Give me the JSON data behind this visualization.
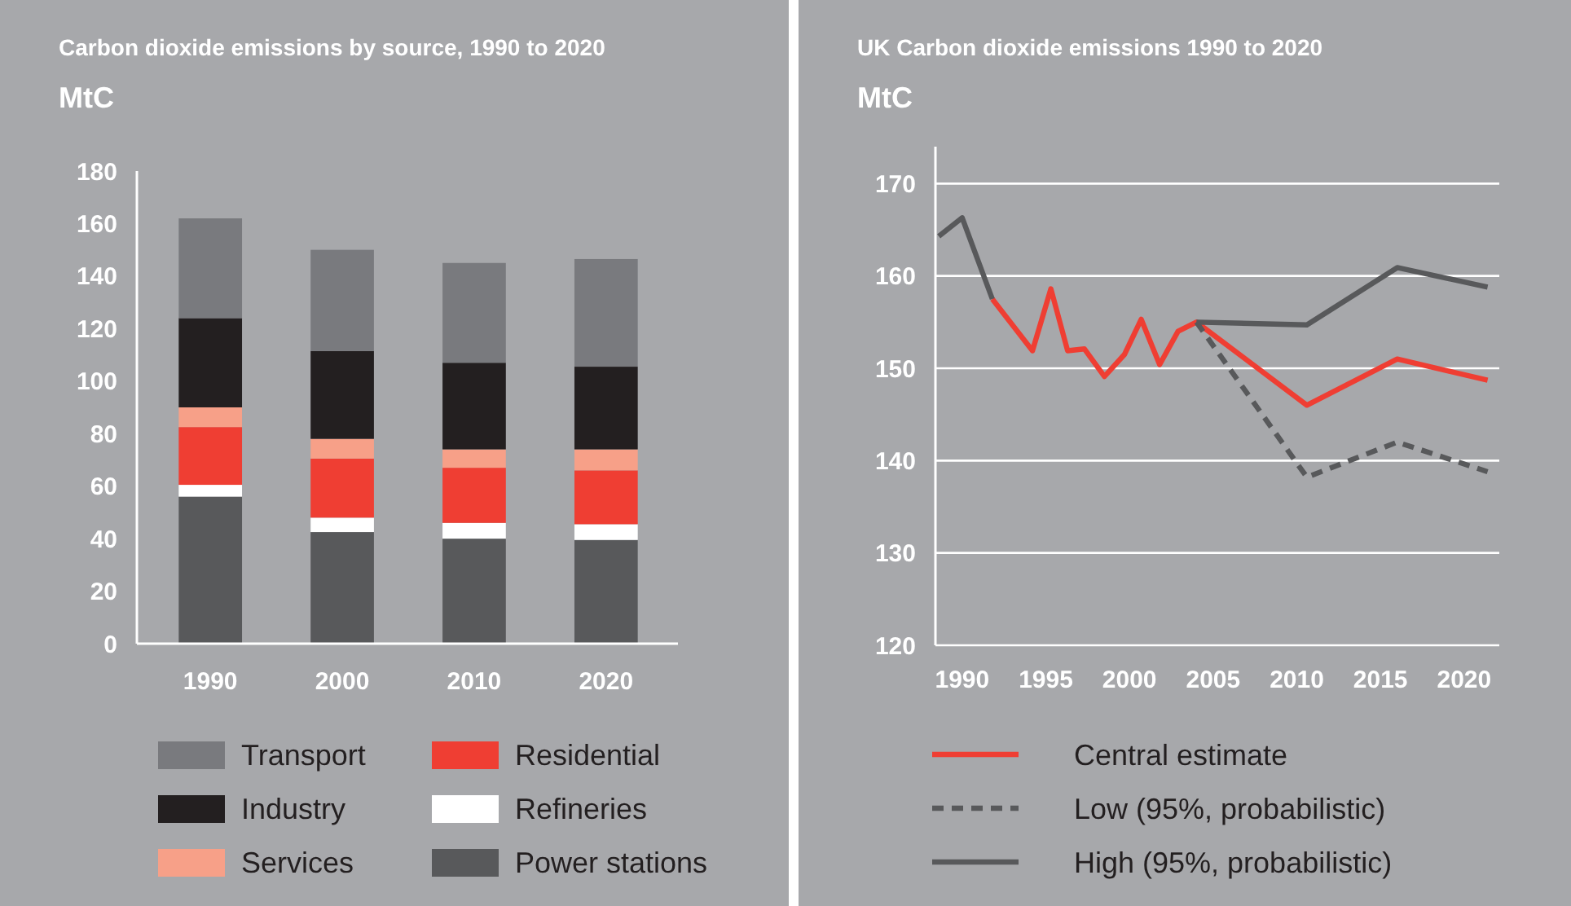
{
  "chart_data": [
    {
      "type": "bar",
      "title": "Carbon dioxide emissions by source, 1990 to 2020",
      "ylabel": "MtC",
      "stacked": true,
      "categories": [
        "1990",
        "2000",
        "2010",
        "2020"
      ],
      "ylim": [
        0,
        180
      ],
      "yticks": [
        0,
        20,
        40,
        60,
        80,
        100,
        120,
        140,
        160,
        180
      ],
      "grid": false,
      "legend": "bottom",
      "series": [
        {
          "name": "Power stations",
          "color": "#58595b",
          "values": [
            56,
            42.5,
            40,
            39.5
          ]
        },
        {
          "name": "Refineries",
          "color": "#ffffff",
          "values": [
            4.5,
            5.5,
            6,
            6
          ]
        },
        {
          "name": "Residential",
          "color": "#ef3e33",
          "values": [
            22,
            22.5,
            21,
            20.5
          ]
        },
        {
          "name": "Services",
          "color": "#f7a088",
          "values": [
            7.5,
            7.5,
            7,
            8
          ]
        },
        {
          "name": "Industry",
          "color": "#231f20",
          "values": [
            34,
            33.5,
            33,
            31.5
          ]
        },
        {
          "name": "Transport",
          "color": "#797a7e",
          "values": [
            38,
            38.5,
            38,
            41
          ]
        }
      ]
    },
    {
      "type": "line",
      "title": "UK Carbon dioxide emissions 1990 to 2020",
      "ylabel": "MtC",
      "xlim": [
        1988.4,
        2022.1
      ],
      "xticks": [
        1990,
        1995,
        2000,
        2005,
        2010,
        2015,
        2020
      ],
      "ylim": [
        120,
        174
      ],
      "yticks": [
        120,
        130,
        140,
        150,
        160,
        170
      ],
      "grid": "y",
      "legend": "bottom",
      "marker": "none",
      "series": [
        {
          "name": "Central estimate",
          "color": "#ef3e33",
          "line_style": "solid",
          "x": [
            1991.8,
            1994.2,
            1995.3,
            1996.3,
            1997.3,
            1998.5,
            1999.7,
            2000.7,
            2001.8,
            2002.9,
            2004,
            2010.6,
            2016,
            2021.4
          ],
          "values": [
            157.5,
            151.9,
            158.6,
            151.9,
            152.1,
            149.1,
            151.5,
            155.3,
            150.4,
            154,
            155,
            146,
            151,
            148.7
          ]
        },
        {
          "name": "Low (95%, probabilistic)",
          "color": "#58595b",
          "line_style": "dashed",
          "x": [
            2004,
            2010.6,
            2016,
            2021.4
          ],
          "values": [
            155,
            138.2,
            142,
            138.8
          ]
        },
        {
          "name": "High (95%, probabilistic)",
          "color": "#58595b",
          "line_style": "solid",
          "x": [
            1988.6,
            1990,
            1991.8,
            2000,
            2004,
            2010.6,
            2016,
            2021.4
          ],
          "values": [
            164.3,
            166.3,
            157.5,
            null,
            155,
            154.7,
            160.9,
            158.8
          ]
        }
      ]
    }
  ]
}
